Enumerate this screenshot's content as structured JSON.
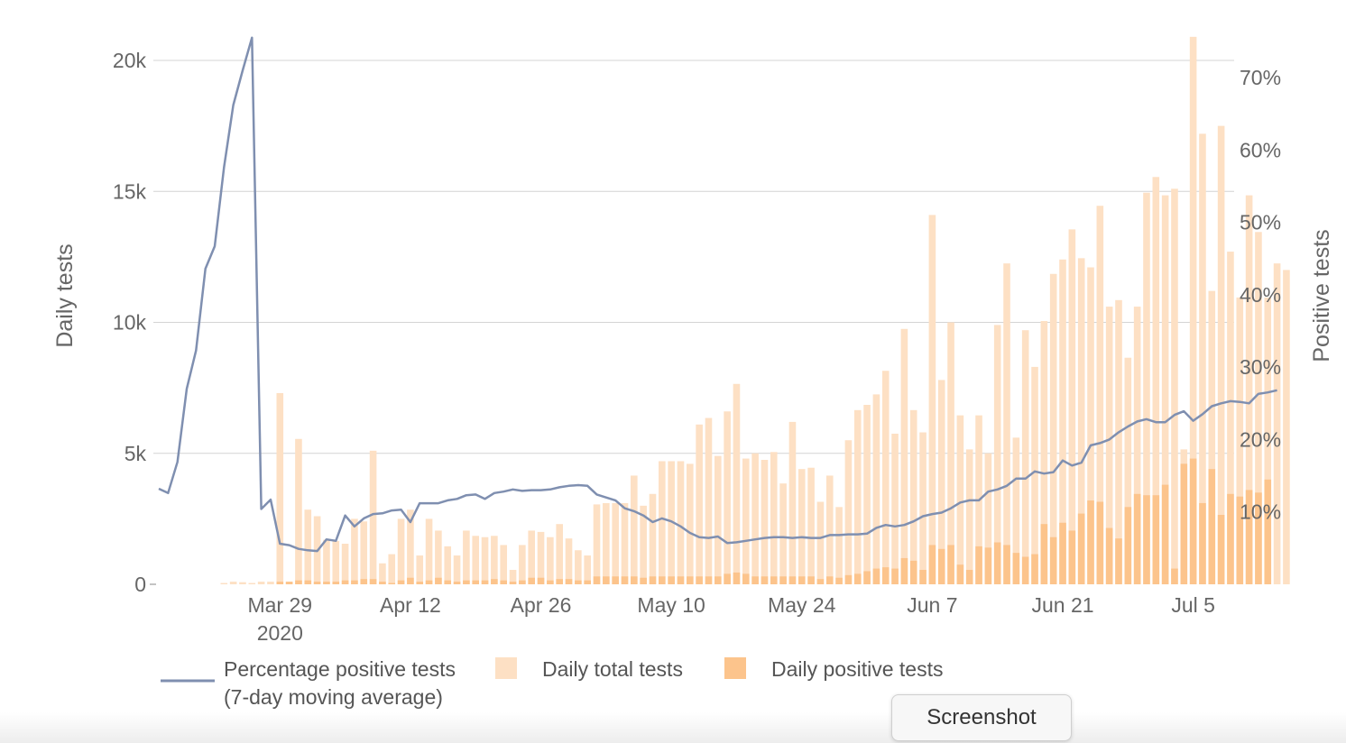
{
  "chart_data": {
    "type": "bar+line",
    "x_start_date": "2020-03-16",
    "x_ticks": [
      {
        "label": "Mar 29",
        "sub": "2020",
        "date": "2020-03-29"
      },
      {
        "label": "Apr 12",
        "sub": "",
        "date": "2020-04-12"
      },
      {
        "label": "Apr 26",
        "sub": "",
        "date": "2020-04-26"
      },
      {
        "label": "May 10",
        "sub": "",
        "date": "2020-05-10"
      },
      {
        "label": "May 24",
        "sub": "",
        "date": "2020-05-24"
      },
      {
        "label": "Jun 7",
        "sub": "",
        "date": "2020-06-07"
      },
      {
        "label": "Jun 21",
        "sub": "",
        "date": "2020-06-21"
      },
      {
        "label": "Jul 5",
        "sub": "",
        "date": "2020-07-05"
      }
    ],
    "y_left": {
      "label": "Daily tests",
      "ticks": [
        {
          "v": 0,
          "t": "0"
        },
        {
          "v": 5000,
          "t": "5k"
        },
        {
          "v": 10000,
          "t": "10k"
        },
        {
          "v": 15000,
          "t": "15k"
        },
        {
          "v": 20000,
          "t": "20k"
        }
      ],
      "range": [
        0,
        20900
      ]
    },
    "y_right": {
      "label": "Positive tests",
      "ticks": [
        {
          "v": 10,
          "t": "10%"
        },
        {
          "v": 20,
          "t": "20%"
        },
        {
          "v": 30,
          "t": "30%"
        },
        {
          "v": 40,
          "t": "40%"
        },
        {
          "v": 50,
          "t": "50%"
        },
        {
          "v": 60,
          "t": "60%"
        },
        {
          "v": 70,
          "t": "70%"
        }
      ],
      "range": [
        0,
        74.5
      ]
    },
    "grid": "horizontal",
    "series": [
      {
        "name": "Daily total tests",
        "kind": "bar",
        "color": "#fde0c4",
        "values": [
          0,
          0,
          0,
          0,
          0,
          0,
          0,
          50,
          100,
          80,
          50,
          100,
          100,
          7300,
          100,
          5550,
          2850,
          2600,
          1700,
          1650,
          1550,
          2500,
          2400,
          5100,
          800,
          1150,
          2500,
          2850,
          1100,
          2500,
          2050,
          1450,
          1100,
          2050,
          1850,
          1800,
          1850,
          1500,
          550,
          1500,
          2050,
          2000,
          1800,
          2300,
          1750,
          1300,
          1100,
          3050,
          3100,
          3100,
          3100,
          4150,
          3000,
          3450,
          4700,
          4700,
          4700,
          4600,
          6100,
          6350,
          4900,
          6600,
          7650,
          4800,
          5000,
          4750,
          5050,
          3850,
          6200,
          4400,
          4450,
          3150,
          4150,
          2950,
          5500,
          6650,
          6850,
          7250,
          8150,
          5750,
          9750,
          6650,
          5800,
          14100,
          7800,
          10000,
          6450,
          5150,
          6450,
          5000,
          9900,
          12250,
          5600,
          9700,
          8300,
          10050,
          11850,
          12400,
          13550,
          12450,
          12100,
          14450,
          10600,
          10850,
          8650,
          10600,
          14950,
          15550,
          14850,
          15100,
          5150,
          20900,
          17200,
          11200,
          17500,
          12700,
          10950,
          14850,
          13450,
          10950,
          12250,
          12000
        ]
      },
      {
        "name": "Daily positive tests",
        "kind": "bar",
        "color": "#fcc48c",
        "values": [
          0,
          0,
          0,
          0,
          0,
          0,
          0,
          0,
          0,
          0,
          0,
          0,
          0,
          100,
          100,
          150,
          150,
          100,
          100,
          100,
          150,
          150,
          200,
          200,
          100,
          50,
          150,
          250,
          100,
          150,
          250,
          150,
          100,
          150,
          150,
          150,
          200,
          150,
          100,
          150,
          250,
          250,
          150,
          200,
          200,
          150,
          150,
          300,
          300,
          300,
          300,
          300,
          250,
          300,
          300,
          300,
          300,
          300,
          300,
          300,
          300,
          400,
          450,
          400,
          300,
          300,
          300,
          300,
          300,
          300,
          300,
          200,
          300,
          250,
          350,
          400,
          500,
          600,
          650,
          600,
          1000,
          900,
          550,
          1500,
          1350,
          1500,
          750,
          550,
          1450,
          1400,
          1600,
          1500,
          1200,
          1050,
          1150,
          2300,
          1800,
          2350,
          2050,
          2700,
          3200,
          3150,
          2150,
          1750,
          2950,
          3450,
          3400,
          3400,
          3800,
          600,
          4600,
          4800,
          3100,
          4400,
          2650,
          3450,
          3350,
          3600,
          3500,
          4000
        ]
      },
      {
        "name": "Percentage positive tests\n(7-day moving average)",
        "kind": "line",
        "color": "#7f8fb0",
        "values": [
          13.2,
          12.6,
          16.9,
          27,
          32.3,
          43.6,
          46.7,
          57.6,
          66.2,
          71,
          75.5,
          10.4,
          11.7,
          5.6,
          5.4,
          4.9,
          4.7,
          4.6,
          6.2,
          6,
          9.5,
          8,
          9.1,
          9.7,
          9.8,
          10.2,
          10.3,
          8.6,
          11.2,
          11.2,
          11.2,
          11.6,
          11.8,
          12.3,
          12.4,
          11.8,
          12.6,
          12.8,
          13.1,
          12.9,
          13,
          13,
          13.1,
          13.4,
          13.6,
          13.7,
          13.6,
          12.4,
          12,
          11.6,
          10.5,
          10.1,
          9.5,
          8.6,
          9.1,
          8.7,
          8,
          7.1,
          6.5,
          6.4,
          6.6,
          5.7,
          5.8,
          6,
          6.2,
          6.4,
          6.5,
          6.5,
          6.4,
          6.5,
          6.4,
          6.4,
          6.8,
          6.8,
          6.9,
          6.9,
          7,
          7.8,
          8.2,
          8,
          8.2,
          8.7,
          9.4,
          9.7,
          9.9,
          10.5,
          11.3,
          11.6,
          11.6,
          12.8,
          13.1,
          13.6,
          14.6,
          14.6,
          15.6,
          15.3,
          15.5,
          17.1,
          16.4,
          16.8,
          19.2,
          19.5,
          20,
          21,
          21.8,
          22.5,
          22.8,
          22.4,
          22.4,
          23.4,
          23.9,
          22.6,
          23.5,
          24.6,
          25,
          25.3,
          25.2,
          25,
          26.3,
          26.5,
          26.8
        ]
      }
    ]
  },
  "legend": {
    "line_label_1": "Percentage positive tests",
    "line_label_2": "(7-day moving average)",
    "total_label": "Daily total tests",
    "positive_label": "Daily positive tests"
  },
  "overlay": {
    "button_label": "Screenshot"
  }
}
